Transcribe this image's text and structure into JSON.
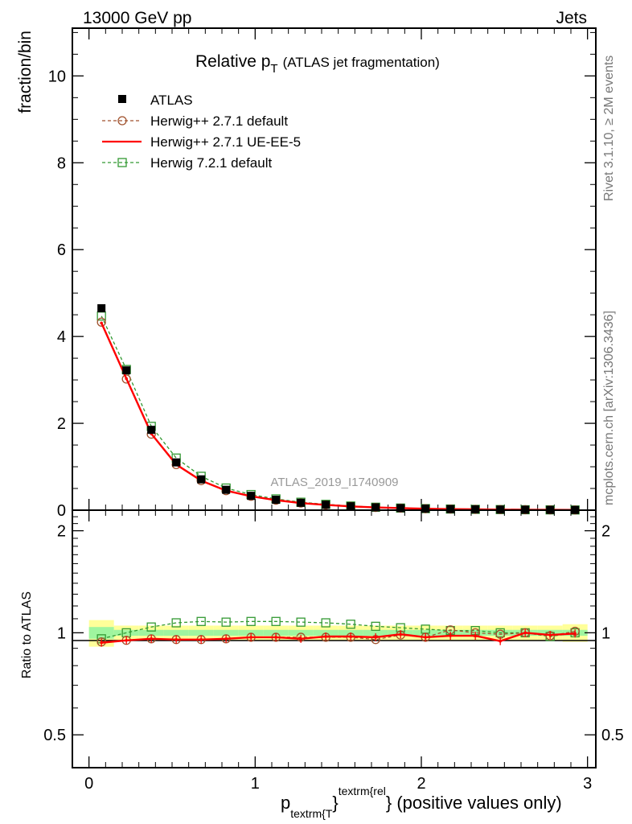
{
  "header": {
    "left": "13000 GeV pp",
    "right": "Jets"
  },
  "side_labels": {
    "rivet": "Rivet 3.1.10, ≥ 2M events",
    "mcplots": "mcplots.cern.ch [arXiv:1306.3436]"
  },
  "watermark": "ATLAS_2019_I1740909",
  "colors": {
    "data": "#000000",
    "herwig_default": "#a0522d",
    "herwig_ueee5": "#ff0000",
    "herwig7": "#339933",
    "band_green": "#9ff59f",
    "band_yellow": "#ffff99"
  },
  "chart_data": [
    {
      "type": "scatter",
      "panel": "main",
      "title": "Relative p",
      "title_sub": "T",
      "title_note": "(ATLAS jet fragmentation)",
      "ylabel": "fraction/bin",
      "xlabel_main": "p",
      "xlabel_sub": "textrm{T",
      "xlabel_sup": "textrm{rel",
      "xlabel_tail": "} (positive values only)",
      "xlabel_close": "}",
      "xlim": [
        -0.1,
        3.05
      ],
      "ylim": [
        0,
        11.1
      ],
      "y_ticks": [
        "0",
        "2",
        "4",
        "6",
        "8",
        "10"
      ],
      "x_ticks": [
        "0",
        "1",
        "2",
        "3"
      ],
      "legend_position": "top-left",
      "x": [
        0.075,
        0.225,
        0.375,
        0.525,
        0.675,
        0.825,
        0.975,
        1.125,
        1.275,
        1.425,
        1.575,
        1.725,
        1.875,
        2.025,
        2.175,
        2.325,
        2.475,
        2.625,
        2.775,
        2.925
      ],
      "series": [
        {
          "name": "ATLAS",
          "key": "atlas",
          "style": "data",
          "values": [
            4.65,
            3.22,
            1.85,
            1.1,
            0.71,
            0.47,
            0.33,
            0.24,
            0.17,
            0.125,
            0.09,
            0.065,
            0.048,
            0.035,
            0.026,
            0.019,
            0.014,
            0.01,
            0.007,
            0.005
          ]
        },
        {
          "name": "Herwig++ 2.7.1 default",
          "key": "hw_default",
          "style": "circle-dashed",
          "values": [
            4.33,
            3.02,
            1.75,
            1.05,
            0.68,
            0.45,
            0.32,
            0.23,
            0.165,
            0.12,
            0.087,
            0.062,
            0.047,
            0.034,
            0.026,
            0.019,
            0.014,
            0.01,
            0.007,
            0.005
          ]
        },
        {
          "name": "Herwig++ 2.7.1 UE-EE-5",
          "key": "hw_ueee5",
          "style": "solid",
          "values": [
            4.31,
            3.03,
            1.76,
            1.05,
            0.68,
            0.45,
            0.32,
            0.232,
            0.163,
            0.122,
            0.088,
            0.063,
            0.048,
            0.034,
            0.025,
            0.019,
            0.013,
            0.01,
            0.007,
            0.005
          ]
        },
        {
          "name": "Herwig 7.2.1 default",
          "key": "hw7",
          "style": "square-dashed",
          "values": [
            4.47,
            3.24,
            1.93,
            1.2,
            0.78,
            0.51,
            0.36,
            0.26,
            0.183,
            0.135,
            0.096,
            0.068,
            0.049,
            0.036,
            0.026,
            0.019,
            0.014,
            0.01,
            0.007,
            0.005
          ]
        }
      ]
    },
    {
      "type": "scatter",
      "panel": "ratio",
      "ylabel": "Ratio to ATLAS",
      "ylim_log": [
        0.4,
        2.3
      ],
      "y_ticks": [
        {
          "v": 0.5,
          "label": "0.5"
        },
        {
          "v": 1,
          "label": "1"
        },
        {
          "v": 2,
          "label": "2"
        }
      ],
      "x": [
        0.075,
        0.225,
        0.375,
        0.525,
        0.675,
        0.825,
        0.975,
        1.125,
        1.275,
        1.425,
        1.575,
        1.725,
        1.875,
        2.025,
        2.175,
        2.325,
        2.475,
        2.625,
        2.775,
        2.925
      ],
      "band_stat": [
        0.04,
        0.02,
        0.02,
        0.02,
        0.02,
        0.02,
        0.02,
        0.02,
        0.02,
        0.02,
        0.02,
        0.02,
        0.02,
        0.02,
        0.02,
        0.02,
        0.02,
        0.02,
        0.02,
        0.02
      ],
      "band_total": [
        0.09,
        0.05,
        0.05,
        0.05,
        0.05,
        0.05,
        0.05,
        0.05,
        0.05,
        0.05,
        0.05,
        0.05,
        0.05,
        0.05,
        0.05,
        0.05,
        0.05,
        0.05,
        0.05,
        0.06
      ],
      "series": [
        {
          "name": "Herwig++ 2.7.1 default",
          "key": "hw_default",
          "style": "circle-dashed",
          "values": [
            0.94,
            0.95,
            0.96,
            0.955,
            0.955,
            0.96,
            0.97,
            0.97,
            0.97,
            0.97,
            0.97,
            0.955,
            0.985,
            0.97,
            1.02,
            1.0,
            0.99,
            1.0,
            0.98,
            1.01
          ]
        },
        {
          "name": "Herwig++ 2.7.1 UE-EE-5",
          "key": "hw_ueee5",
          "style": "solid",
          "values": [
            0.935,
            0.95,
            0.96,
            0.955,
            0.955,
            0.96,
            0.97,
            0.97,
            0.96,
            0.975,
            0.975,
            0.97,
            0.99,
            0.97,
            0.98,
            0.98,
            0.945,
            1.0,
            0.985,
            0.995
          ]
        },
        {
          "name": "Herwig 7.2.1 default",
          "key": "hw7",
          "style": "square-dashed",
          "values": [
            0.96,
            1.0,
            1.04,
            1.07,
            1.08,
            1.075,
            1.08,
            1.08,
            1.075,
            1.07,
            1.06,
            1.045,
            1.035,
            1.025,
            1.015,
            1.015,
            1.0,
            1.0,
            0.975,
            1.0
          ]
        }
      ]
    }
  ]
}
